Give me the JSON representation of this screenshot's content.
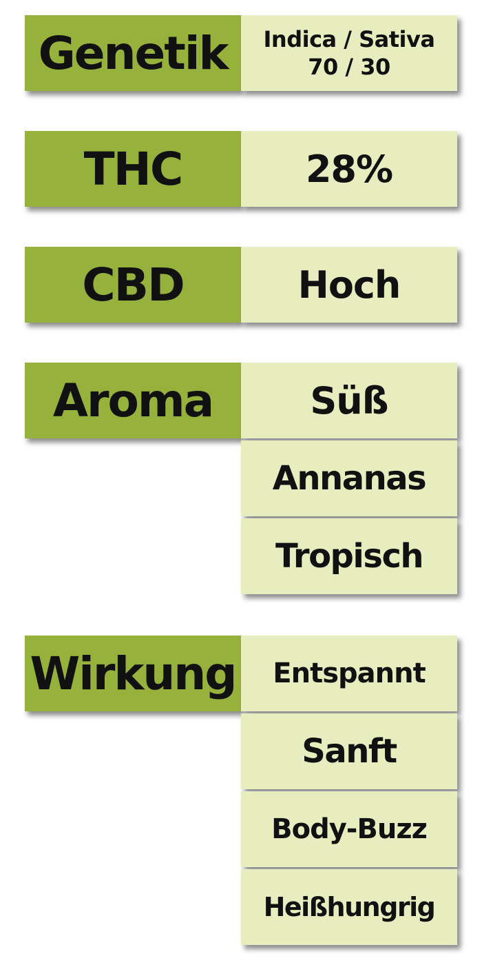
{
  "rows": {
    "genetik": {
      "label": "Genetik",
      "value_line1": "Indica / Sativa",
      "value_line2": "70 / 30"
    },
    "thc": {
      "label": "THC",
      "value": "28%"
    },
    "cbd": {
      "label": "CBD",
      "value": "Hoch"
    },
    "aroma": {
      "label": "Aroma",
      "values": [
        "Süß",
        "Annanas",
        "Tropisch"
      ]
    },
    "wirkung": {
      "label": "Wirkung",
      "values": [
        "Entspannt",
        "Sanft",
        "Body-Buzz",
        "Heißhungrig"
      ]
    }
  },
  "colors": {
    "label_bg": "#96b13c",
    "value_bg": "#e8edbf",
    "text": "#111111"
  }
}
